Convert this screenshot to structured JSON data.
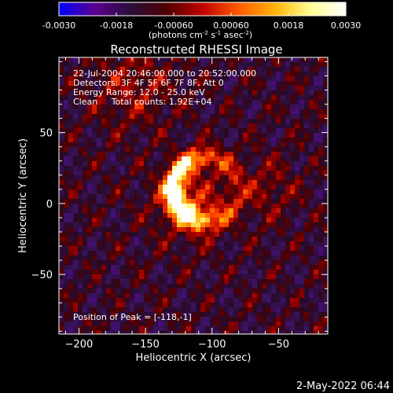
{
  "colorbar": {
    "min": -0.003,
    "max": 0.003,
    "ticks": [
      "-0.0030",
      "-0.0018",
      "-0.00060",
      "0.00060",
      "0.0018",
      "0.0030"
    ],
    "tick_values": [
      -0.003,
      -0.0018,
      -0.0006,
      0.0006,
      0.0018,
      0.003
    ],
    "units_main": "(photons cm",
    "units_exp1": "-2",
    "units_mid": " s",
    "units_exp2": "-1",
    "units_end": " asec",
    "units_exp3": "-2",
    "units_close": ")",
    "colors": [
      "#0000ff",
      "#5a0090",
      "#2a0f3a",
      "#500000",
      "#c00000",
      "#ff5a00",
      "#ffb000",
      "#ffff90",
      "#ffffff"
    ]
  },
  "chart_data": {
    "type": "heatmap",
    "title": "Reconstructed RHESSI Image",
    "xlabel": "Heliocentric X (arcsec)",
    "ylabel": "Heliocentric Y (arcsec)",
    "xlim": [
      -215,
      -13
    ],
    "ylim": [
      -92,
      103
    ],
    "x_ticks": [
      -200,
      -150,
      -100,
      -50
    ],
    "y_ticks": [
      50,
      0,
      -50
    ],
    "x_tick_labels": [
      "−200",
      "−150",
      "−100",
      "−50"
    ],
    "y_tick_labels": [
      "50",
      "0",
      "−50"
    ],
    "peak_position": [
      -118,
      -1
    ],
    "source_shape": "crescent-shaped bright source centered near the peak, opening to the right"
  },
  "info": {
    "line1": "22-Jul-2004 20:46:00.000 to 20:52:00.000",
    "line2": "Detectors: 3F 4F 5F 6F 7F 8F, Att 0",
    "line3": "Energy Range: 12.0 - 25.0 keV",
    "line4": "Clean     Total counts: 1.92E+04",
    "peak": "Position of Peak = [-118,-1]"
  },
  "footer": {
    "timestamp": "2-May-2022 06:44"
  }
}
